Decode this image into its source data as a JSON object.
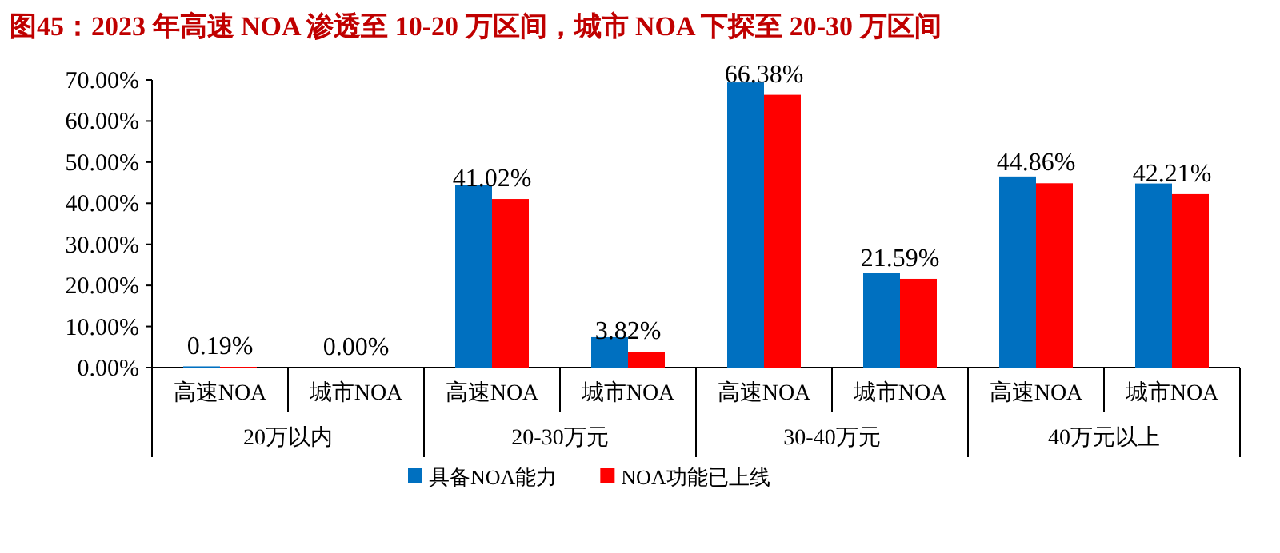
{
  "chart_data": {
    "type": "bar",
    "title": "图45：2023 年高速 NOA 渗透至 10-20 万区间，城市 NOA 下探至 20-30 万区间",
    "categories": [
      "高速NOA",
      "城市NOA",
      "高速NOA",
      "城市NOA",
      "高速NOA",
      "城市NOA",
      "高速NOA",
      "城市NOA"
    ],
    "annotations": [
      "20万以内",
      "20-30万元",
      "30-40万元",
      "40万元以上"
    ],
    "series": [
      {
        "name": "具备NOA能力",
        "color": "#0070c0",
        "values": [
          0.3,
          0,
          44.4,
          7.4,
          69.4,
          23.1,
          46.5,
          44.8
        ]
      },
      {
        "name": "NOA功能已上线",
        "color": "#ff0000",
        "values": [
          0.19,
          0.0,
          41.02,
          3.82,
          66.38,
          21.59,
          44.86,
          42.21
        ],
        "value_labels": [
          "0.19%",
          "0.00%",
          "41.02%",
          "3.82%",
          "66.38%",
          "21.59%",
          "44.86%",
          "42.21%"
        ]
      }
    ],
    "ylim": [
      0,
      70
    ],
    "yticks": [
      {
        "value": 0,
        "label": "0.00%"
      },
      {
        "value": 10,
        "label": "10.00%"
      },
      {
        "value": 20,
        "label": "20.00%"
      },
      {
        "value": 30,
        "label": "30.00%"
      },
      {
        "value": 40,
        "label": "40.00%"
      },
      {
        "value": 50,
        "label": "50.00%"
      },
      {
        "value": 60,
        "label": "60.00%"
      },
      {
        "value": 70,
        "label": "70.00%"
      }
    ],
    "grid": false,
    "legend": "bottom"
  }
}
